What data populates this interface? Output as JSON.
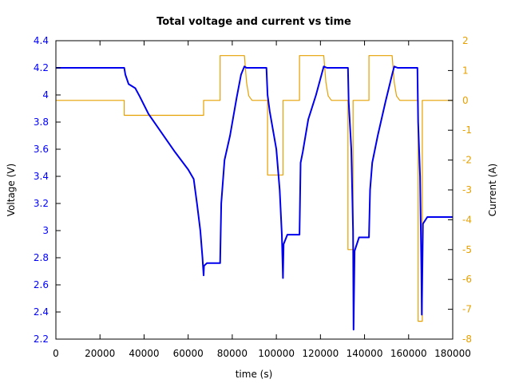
{
  "chart_data": {
    "type": "line",
    "title": "Total voltage and current vs time",
    "xlabel": "time (s)",
    "ylabel": "Voltage (V)",
    "y2label": "Current (A)",
    "xlim": [
      0,
      180000
    ],
    "ylim": [
      2.2,
      4.4
    ],
    "y2lim": [
      -8,
      2
    ],
    "grid": false,
    "legend": "none",
    "x_ticks": [
      "0",
      "20000",
      "40000",
      "60000",
      "80000",
      "100000",
      "120000",
      "140000",
      "160000",
      "180000"
    ],
    "y_ticks": [
      "2.2",
      "2.4",
      "2.6",
      "2.8",
      "3",
      "3.2",
      "3.4",
      "3.6",
      "3.8",
      "4",
      "4.2",
      "4.4"
    ],
    "y2_ticks": [
      "-8",
      "-7",
      "-6",
      "-5",
      "-4",
      "-3",
      "-2",
      "-1",
      "0",
      "1",
      "2"
    ],
    "colors": {
      "voltage": "#0000ee",
      "current": "#e6a000",
      "axis": "#000000"
    },
    "series": [
      {
        "name": "Voltage (V)",
        "axis": "left",
        "color": "#0000ee",
        "x": [
          0,
          31000,
          31500,
          33000,
          36000,
          38000,
          42000,
          48000,
          54000,
          60000,
          62500,
          64000,
          65500,
          66500,
          67000,
          67200,
          68500,
          74500,
          75000,
          76500,
          79000,
          82000,
          84000,
          85500,
          86500,
          89000,
          95500,
          96000,
          97000,
          100000,
          101500,
          102500,
          103000,
          103300,
          105000,
          110500,
          111000,
          112000,
          114500,
          118000,
          120500,
          121500,
          123000,
          132500,
          132800,
          134000,
          134800,
          135000,
          135500,
          137500,
          142000,
          142500,
          143500,
          146000,
          149500,
          152500,
          153500,
          155000,
          164000,
          164300,
          165200,
          165800,
          166000,
          166500,
          168500,
          172000,
          180000
        ],
        "values": [
          4.2,
          4.2,
          4.15,
          4.08,
          4.05,
          3.99,
          3.86,
          3.72,
          3.58,
          3.45,
          3.38,
          3.2,
          3.0,
          2.8,
          2.67,
          2.74,
          2.76,
          2.76,
          3.2,
          3.52,
          3.7,
          3.98,
          4.15,
          4.21,
          4.2,
          4.2,
          4.2,
          4.0,
          3.88,
          3.6,
          3.3,
          2.97,
          2.65,
          2.9,
          2.97,
          2.97,
          3.5,
          3.58,
          3.82,
          4.0,
          4.15,
          4.21,
          4.2,
          4.2,
          3.95,
          3.6,
          3.0,
          2.27,
          2.85,
          2.95,
          2.95,
          3.3,
          3.5,
          3.7,
          3.95,
          4.15,
          4.21,
          4.2,
          4.2,
          3.8,
          3.4,
          2.7,
          2.38,
          3.05,
          3.1,
          3.1,
          3.1
        ]
      },
      {
        "name": "Current (A)",
        "axis": "right",
        "color": "#e6a000",
        "x": [
          0,
          31000,
          31000,
          67000,
          67000,
          74500,
          74500,
          85500,
          86500,
          87500,
          89000,
          96000,
          96000,
          103000,
          103000,
          110500,
          110500,
          121500,
          122500,
          123500,
          125000,
          132500,
          132500,
          134800,
          134800,
          142000,
          142000,
          152500,
          153500,
          154500,
          156000,
          164300,
          164300,
          166200,
          166200,
          180000
        ],
        "values": [
          0,
          0,
          -0.5,
          -0.5,
          0,
          0,
          1.5,
          1.5,
          0.6,
          0.15,
          0,
          0,
          -2.5,
          -2.5,
          0,
          0,
          1.5,
          1.5,
          0.6,
          0.15,
          0,
          0,
          -5,
          -5,
          0,
          0,
          1.5,
          1.5,
          0.6,
          0.15,
          0,
          0,
          -7.4,
          -7.4,
          0,
          0
        ]
      }
    ]
  }
}
